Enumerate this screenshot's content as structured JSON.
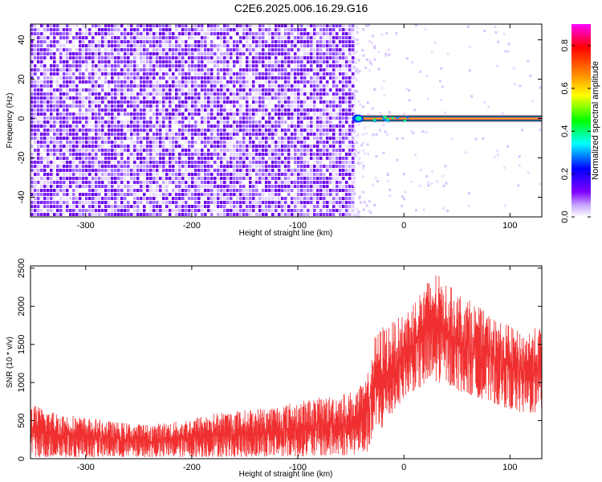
{
  "title": "C2E6.2025.006.16.29.G16",
  "chart_data": [
    {
      "type": "heatmap",
      "xlabel": "Height of straight line (km)",
      "ylabel": "Frequency (Hz)",
      "xlim": [
        -352,
        130
      ],
      "ylim": [
        -50,
        48
      ],
      "xticks": [
        -300,
        -200,
        -100,
        0,
        100
      ],
      "yticks": [
        -40,
        -20,
        0,
        20,
        40
      ],
      "xtick_labels": [
        "-300",
        "-200",
        "-100",
        "0",
        "100"
      ],
      "ytick_labels": [
        "-40",
        "-20",
        "0",
        "20",
        "40"
      ],
      "colorbar": {
        "label": "Normalized spectral amplitude",
        "range": [
          0,
          0.9
        ],
        "ticks": [
          0,
          0.2,
          0.4,
          0.6,
          0.8
        ],
        "tick_labels": [
          "0.0",
          "0.2",
          "0.4",
          "0.6",
          "0.8"
        ],
        "colormap": [
          "#ffffff",
          "#8000ff",
          "#0000ff",
          "#00ffff",
          "#00ff00",
          "#ffff00",
          "#ff8000",
          "#ff0000",
          "#ff00ff"
        ]
      },
      "regions": [
        {
          "x_range": [
            -352,
            -48
          ],
          "freq_range": [
            -50,
            48
          ],
          "amplitude": 0.12,
          "description": "broadband noise"
        },
        {
          "x_range": [
            -48,
            130
          ],
          "freq_range": [
            -1,
            1
          ],
          "amplitude": 0.9,
          "description": "carrier line near 0 Hz"
        }
      ]
    },
    {
      "type": "line",
      "xlabel": "Height of straight line (km)",
      "ylabel": "SNR (10 * v/v)",
      "xlim": [
        -352,
        130
      ],
      "ylim": [
        0,
        2530
      ],
      "xticks": [
        -300,
        -200,
        -100,
        0,
        100
      ],
      "yticks": [
        0,
        500,
        1000,
        1500,
        2000,
        2500
      ],
      "xtick_labels": [
        "-300",
        "-200",
        "-100",
        "0",
        "100"
      ],
      "ytick_labels": [
        "0",
        "500",
        "1000",
        "1500",
        "2000",
        "2500"
      ],
      "color": "#f03030",
      "series": [
        {
          "x": [
            -352,
            -330,
            -300,
            -270,
            -240,
            -210,
            -180,
            -150,
            -120,
            -90,
            -60,
            -45,
            -35,
            -28,
            -20,
            -10,
            0,
            10,
            20,
            30,
            40,
            50,
            60,
            70,
            80,
            90,
            100,
            110,
            120,
            130
          ],
          "low": [
            20,
            20,
            20,
            20,
            20,
            20,
            25,
            25,
            30,
            30,
            40,
            60,
            80,
            300,
            400,
            600,
            800,
            900,
            950,
            1000,
            1000,
            900,
            850,
            800,
            750,
            700,
            650,
            600,
            600,
            600
          ],
          "high": [
            720,
            620,
            540,
            480,
            450,
            500,
            600,
            640,
            700,
            780,
            850,
            900,
            1050,
            1600,
            1750,
            1800,
            1900,
            2100,
            2300,
            2450,
            2300,
            2200,
            2100,
            2000,
            1900,
            1800,
            1750,
            1650,
            1700,
            1750
          ]
        }
      ]
    }
  ]
}
